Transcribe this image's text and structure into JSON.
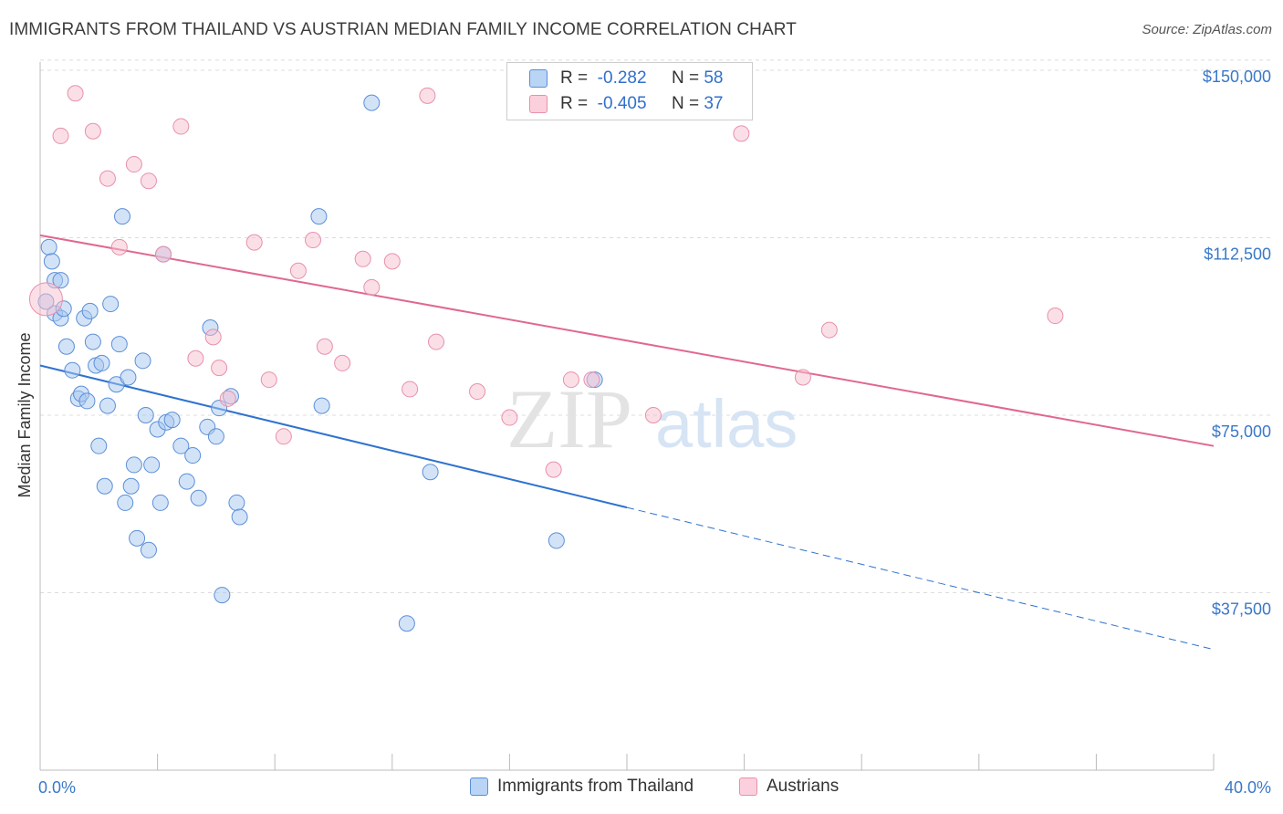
{
  "title": "IMMIGRANTS FROM THAILAND VS AUSTRIAN MEDIAN FAMILY INCOME CORRELATION CHART",
  "source": "Source: ZipAtlas.com",
  "watermark": {
    "zip": "ZIP",
    "atlas": "atlas"
  },
  "colors": {
    "blue_fill": "#a8c8f0",
    "blue_stroke": "#5a8fd8",
    "blue_line": "#2f72d0",
    "pink_fill": "#f8bfd0",
    "pink_stroke": "#e890ab",
    "pink_line": "#e0688f",
    "tick_label": "#3a78c9",
    "grid": "#dcdcdc"
  },
  "legend": {
    "r_label": "R =",
    "n_label": "N =",
    "blue": {
      "r": "-0.282",
      "n": "58"
    },
    "pink": {
      "r": "-0.405",
      "n": "37"
    }
  },
  "chart_data": {
    "type": "scatter",
    "xlabel": "",
    "ylabel": "Median Family Income",
    "xlim": [
      0,
      40
    ],
    "ylim": [
      0,
      155000
    ],
    "x_tick_labels": {
      "left": "0.0%",
      "right": "40.0%"
    },
    "y_ticks": [
      37500,
      75000,
      112500,
      150000
    ],
    "y_tick_labels": [
      "$37,500",
      "$75,000",
      "$112,500",
      "$150,000"
    ],
    "grid": true,
    "legend_position": "top-center",
    "series": [
      {
        "name": "Immigrants from Thailand",
        "color": "blue",
        "trend": {
          "x_start": 0,
          "y_start": 85500,
          "x_solid_end": 20,
          "y_solid_end": 55500,
          "x_end": 40,
          "y_end": 25500
        },
        "points": [
          [
            0.3,
            110500
          ],
          [
            0.4,
            107500
          ],
          [
            0.5,
            103500
          ],
          [
            0.7,
            103500
          ],
          [
            0.5,
            96500
          ],
          [
            0.7,
            95500
          ],
          [
            0.8,
            97500
          ],
          [
            0.9,
            89500
          ],
          [
            1.1,
            84500
          ],
          [
            1.3,
            78500
          ],
          [
            1.4,
            79500
          ],
          [
            1.6,
            78000
          ],
          [
            1.5,
            95500
          ],
          [
            1.7,
            97000
          ],
          [
            1.8,
            90500
          ],
          [
            1.9,
            85500
          ],
          [
            2.0,
            68500
          ],
          [
            2.1,
            86000
          ],
          [
            2.3,
            77000
          ],
          [
            2.2,
            60000
          ],
          [
            2.4,
            98500
          ],
          [
            2.6,
            81500
          ],
          [
            2.7,
            90000
          ],
          [
            2.9,
            56500
          ],
          [
            3.0,
            83000
          ],
          [
            3.1,
            60000
          ],
          [
            3.2,
            64500
          ],
          [
            3.3,
            49000
          ],
          [
            3.5,
            86500
          ],
          [
            3.6,
            75000
          ],
          [
            3.7,
            46500
          ],
          [
            3.8,
            64500
          ],
          [
            4.0,
            72000
          ],
          [
            4.1,
            56500
          ],
          [
            2.8,
            117000
          ],
          [
            4.2,
            109000
          ],
          [
            4.3,
            73500
          ],
          [
            4.5,
            74000
          ],
          [
            4.8,
            68500
          ],
          [
            5.0,
            61000
          ],
          [
            5.2,
            66500
          ],
          [
            5.4,
            57500
          ],
          [
            5.7,
            72500
          ],
          [
            5.8,
            93500
          ],
          [
            6.0,
            70500
          ],
          [
            6.1,
            76500
          ],
          [
            6.2,
            37000
          ],
          [
            6.5,
            79000
          ],
          [
            6.7,
            56500
          ],
          [
            6.8,
            53500
          ],
          [
            9.5,
            117000
          ],
          [
            9.6,
            77000
          ],
          [
            11.3,
            141000
          ],
          [
            12.5,
            31000
          ],
          [
            13.3,
            63000
          ],
          [
            17.6,
            48500
          ],
          [
            18.9,
            82500
          ],
          [
            0.2,
            99000
          ]
        ]
      },
      {
        "name": "Austrians",
        "color": "pink",
        "trend": {
          "x_start": 0,
          "y_start": 113000,
          "x_end": 40,
          "y_end": 68500
        },
        "points": [
          [
            0.2,
            99500
          ],
          [
            0.7,
            134000
          ],
          [
            1.2,
            143000
          ],
          [
            1.8,
            135000
          ],
          [
            2.3,
            125000
          ],
          [
            2.7,
            110500
          ],
          [
            3.2,
            128000
          ],
          [
            3.7,
            124500
          ],
          [
            4.2,
            109000
          ],
          [
            4.8,
            136000
          ],
          [
            5.3,
            87000
          ],
          [
            5.9,
            91500
          ],
          [
            6.1,
            85000
          ],
          [
            6.4,
            78500
          ],
          [
            7.3,
            111500
          ],
          [
            7.8,
            82500
          ],
          [
            8.3,
            70500
          ],
          [
            8.8,
            105500
          ],
          [
            9.3,
            112000
          ],
          [
            9.7,
            89500
          ],
          [
            10.3,
            86000
          ],
          [
            11.0,
            108000
          ],
          [
            11.3,
            102000
          ],
          [
            12.0,
            107500
          ],
          [
            12.6,
            80500
          ],
          [
            13.2,
            142500
          ],
          [
            13.5,
            90500
          ],
          [
            14.9,
            80000
          ],
          [
            16.0,
            74500
          ],
          [
            17.5,
            63500
          ],
          [
            18.1,
            82500
          ],
          [
            20.9,
            75000
          ],
          [
            23.9,
            134500
          ],
          [
            26.0,
            83000
          ],
          [
            26.9,
            93000
          ],
          [
            34.6,
            96000
          ],
          [
            18.8,
            82500
          ]
        ]
      }
    ]
  }
}
